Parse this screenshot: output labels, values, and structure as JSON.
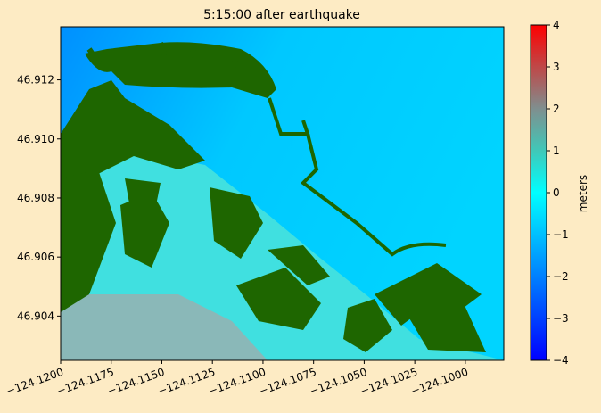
{
  "chart_data": {
    "type": "map",
    "title": "5:15:00 after earthquake",
    "xlim": [
      -124.12,
      -124.0981
    ],
    "ylim": [
      46.9025,
      46.9138
    ],
    "xticks": [
      {
        "value": -124.12,
        "label": "−124.1200"
      },
      {
        "value": -124.1175,
        "label": "−124.1175"
      },
      {
        "value": -124.115,
        "label": "−124.1150"
      },
      {
        "value": -124.1125,
        "label": "−124.1125"
      },
      {
        "value": -124.11,
        "label": "−124.1100"
      },
      {
        "value": -124.1075,
        "label": "−124.1075"
      },
      {
        "value": -124.105,
        "label": "−124.1050"
      },
      {
        "value": -124.1025,
        "label": "−124.1025"
      },
      {
        "value": -124.1,
        "label": "−124.1000"
      }
    ],
    "yticks": [
      46.904,
      46.906,
      46.908,
      {
        "value": 46.91,
        "label": "46.910"
      },
      46.912
    ],
    "colorbar": {
      "label": "meters",
      "lim": [
        -4,
        4
      ],
      "ticks": [
        {
          "value": -4,
          "label": "−4"
        },
        {
          "value": -3,
          "label": "−3"
        },
        {
          "value": -2,
          "label": "−2"
        },
        {
          "value": -1,
          "label": "−1"
        },
        0,
        1,
        2,
        3,
        4
      ],
      "colors": [
        "#0000ff",
        "#0040ff",
        "#0080ff",
        "#00c0ff",
        "#00ffff",
        "#40c8b8",
        "#7f8f8f",
        "#bf4848",
        "#ff0000"
      ]
    }
  }
}
